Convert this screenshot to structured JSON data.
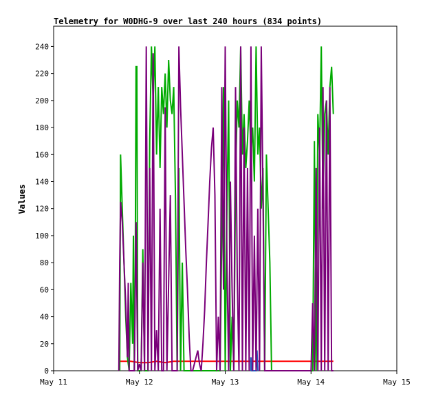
{
  "chart_data": {
    "type": "line",
    "title": "Telemetry for W0DHG-9 over last 240 hours (834 points)",
    "xlabel": "",
    "ylabel": "Values",
    "ylim": [
      0,
      255
    ],
    "yticks": [
      0,
      20,
      40,
      60,
      80,
      100,
      120,
      140,
      160,
      180,
      200,
      220,
      240
    ],
    "xlim": [
      0,
      4
    ],
    "xticks": [
      {
        "value": 0,
        "label": "May 11"
      },
      {
        "value": 1,
        "label": "May 12"
      },
      {
        "value": 2,
        "label": "May 13"
      },
      {
        "value": 3,
        "label": "May 14"
      },
      {
        "value": 4,
        "label": "May 15"
      }
    ],
    "grid": false,
    "legend": "none",
    "series": [
      {
        "color": "#ff0000",
        "points": [
          [
            0.76,
            7
          ],
          [
            0.9,
            7
          ],
          [
            1.0,
            6
          ],
          [
            1.1,
            6
          ],
          [
            1.2,
            7
          ],
          [
            1.3,
            6
          ],
          [
            1.4,
            7
          ],
          [
            1.6,
            7
          ],
          [
            1.8,
            7
          ],
          [
            2.0,
            7
          ],
          [
            2.2,
            7
          ],
          [
            2.4,
            7
          ],
          [
            2.6,
            7
          ],
          [
            2.8,
            7
          ],
          [
            3.0,
            7
          ],
          [
            3.1,
            7
          ],
          [
            3.26,
            7
          ]
        ]
      },
      {
        "color": "#00aa00",
        "points": [
          [
            0.77,
            0
          ],
          [
            0.78,
            160
          ],
          [
            0.8,
            120
          ],
          [
            0.82,
            80
          ],
          [
            0.84,
            40
          ],
          [
            0.86,
            10
          ],
          [
            0.88,
            0
          ],
          [
            0.9,
            65
          ],
          [
            0.92,
            20
          ],
          [
            0.93,
            100
          ],
          [
            0.94,
            0
          ],
          [
            0.95,
            50
          ],
          [
            0.96,
            225
          ],
          [
            0.97,
            225
          ],
          [
            0.98,
            0
          ],
          [
            1.02,
            0
          ],
          [
            1.04,
            90
          ],
          [
            1.06,
            0
          ],
          [
            1.1,
            0
          ],
          [
            1.12,
            170
          ],
          [
            1.14,
            240
          ],
          [
            1.16,
            200
          ],
          [
            1.18,
            240
          ],
          [
            1.2,
            160
          ],
          [
            1.22,
            210
          ],
          [
            1.24,
            150
          ],
          [
            1.26,
            210
          ],
          [
            1.28,
            190
          ],
          [
            1.3,
            220
          ],
          [
            1.32,
            180
          ],
          [
            1.34,
            230
          ],
          [
            1.36,
            200
          ],
          [
            1.38,
            190
          ],
          [
            1.4,
            210
          ],
          [
            1.42,
            130
          ],
          [
            1.44,
            0
          ],
          [
            1.46,
            150
          ],
          [
            1.48,
            0
          ],
          [
            1.5,
            80
          ],
          [
            1.52,
            0
          ],
          [
            1.58,
            0
          ],
          [
            1.6,
            0
          ],
          [
            1.94,
            0
          ],
          [
            1.96,
            100
          ],
          [
            1.98,
            210
          ],
          [
            2.0,
            0
          ],
          [
            2.02,
            120
          ],
          [
            2.04,
            200
          ],
          [
            2.06,
            0
          ],
          [
            2.08,
            40
          ],
          [
            2.1,
            0
          ],
          [
            2.12,
            140
          ],
          [
            2.14,
            200
          ],
          [
            2.16,
            180
          ],
          [
            2.18,
            240
          ],
          [
            2.2,
            160
          ],
          [
            2.22,
            190
          ],
          [
            2.24,
            150
          ],
          [
            2.26,
            170
          ],
          [
            2.28,
            200
          ],
          [
            2.3,
            160
          ],
          [
            2.32,
            180
          ],
          [
            2.34,
            140
          ],
          [
            2.36,
            240
          ],
          [
            2.38,
            160
          ],
          [
            2.4,
            180
          ],
          [
            2.42,
            120
          ],
          [
            2.44,
            150
          ],
          [
            2.46,
            0
          ],
          [
            2.48,
            160
          ],
          [
            2.5,
            120
          ],
          [
            2.52,
            80
          ],
          [
            2.54,
            0
          ],
          [
            3.02,
            0
          ],
          [
            3.04,
            170
          ],
          [
            3.06,
            0
          ],
          [
            3.08,
            190
          ],
          [
            3.1,
            160
          ],
          [
            3.12,
            240
          ],
          [
            3.14,
            120
          ],
          [
            3.16,
            190
          ],
          [
            3.18,
            200
          ],
          [
            3.2,
            160
          ],
          [
            3.22,
            210
          ],
          [
            3.24,
            225
          ],
          [
            3.26,
            190
          ]
        ]
      },
      {
        "color": "#1f5fbf",
        "points": [
          [
            2.3,
            0
          ],
          [
            2.3,
            10
          ],
          [
            2.31,
            0
          ],
          [
            2.36,
            0
          ],
          [
            2.37,
            15
          ],
          [
            2.38,
            0
          ]
        ]
      },
      {
        "color": "#7a007a",
        "points": [
          [
            0.76,
            0
          ],
          [
            0.77,
            80
          ],
          [
            0.78,
            125
          ],
          [
            0.8,
            110
          ],
          [
            0.82,
            80
          ],
          [
            0.84,
            50
          ],
          [
            0.86,
            10
          ],
          [
            0.87,
            65
          ],
          [
            0.88,
            0
          ],
          [
            0.9,
            0
          ],
          [
            0.92,
            0
          ],
          [
            0.94,
            0
          ],
          [
            0.96,
            110
          ],
          [
            0.98,
            0
          ],
          [
            1.0,
            5
          ],
          [
            1.02,
            0
          ],
          [
            1.04,
            80
          ],
          [
            1.06,
            0
          ],
          [
            1.08,
            240
          ],
          [
            1.1,
            0
          ],
          [
            1.12,
            150
          ],
          [
            1.14,
            0
          ],
          [
            1.16,
            235
          ],
          [
            1.18,
            0
          ],
          [
            1.2,
            30
          ],
          [
            1.22,
            0
          ],
          [
            1.24,
            120
          ],
          [
            1.26,
            0
          ],
          [
            1.28,
            0
          ],
          [
            1.3,
            195
          ],
          [
            1.32,
            0
          ],
          [
            1.36,
            130
          ],
          [
            1.38,
            0
          ],
          [
            1.44,
            0
          ],
          [
            1.46,
            240
          ],
          [
            1.48,
            195
          ],
          [
            1.5,
            160
          ],
          [
            1.52,
            125
          ],
          [
            1.54,
            90
          ],
          [
            1.56,
            60
          ],
          [
            1.58,
            25
          ],
          [
            1.6,
            0
          ],
          [
            1.62,
            0
          ],
          [
            1.64,
            5
          ],
          [
            1.66,
            10
          ],
          [
            1.68,
            15
          ],
          [
            1.7,
            5
          ],
          [
            1.72,
            0
          ],
          [
            1.74,
            20
          ],
          [
            1.76,
            45
          ],
          [
            1.78,
            80
          ],
          [
            1.8,
            110
          ],
          [
            1.82,
            140
          ],
          [
            1.84,
            165
          ],
          [
            1.86,
            180
          ],
          [
            1.88,
            130
          ],
          [
            1.9,
            0
          ],
          [
            1.92,
            40
          ],
          [
            1.94,
            0
          ],
          [
            1.96,
            210
          ],
          [
            1.98,
            60
          ],
          [
            2.0,
            240
          ],
          [
            2.02,
            80
          ],
          [
            2.04,
            0
          ],
          [
            2.06,
            140
          ],
          [
            2.08,
            60
          ],
          [
            2.1,
            0
          ],
          [
            2.12,
            210
          ],
          [
            2.14,
            70
          ],
          [
            2.16,
            0
          ],
          [
            2.18,
            240
          ],
          [
            2.2,
            0
          ],
          [
            2.22,
            180
          ],
          [
            2.24,
            0
          ],
          [
            2.26,
            150
          ],
          [
            2.28,
            0
          ],
          [
            2.3,
            240
          ],
          [
            2.32,
            0
          ],
          [
            2.34,
            100
          ],
          [
            2.36,
            0
          ],
          [
            2.38,
            120
          ],
          [
            2.4,
            0
          ],
          [
            2.42,
            240
          ],
          [
            2.44,
            130
          ],
          [
            2.46,
            0
          ],
          [
            3.0,
            0
          ],
          [
            3.02,
            50
          ],
          [
            3.04,
            0
          ],
          [
            3.06,
            150
          ],
          [
            3.08,
            0
          ],
          [
            3.1,
            180
          ],
          [
            3.12,
            0
          ],
          [
            3.14,
            210
          ],
          [
            3.16,
            0
          ],
          [
            3.18,
            200
          ],
          [
            3.2,
            0
          ],
          [
            3.22,
            210
          ],
          [
            3.24,
            0
          ],
          [
            3.26,
            0
          ]
        ]
      }
    ]
  }
}
